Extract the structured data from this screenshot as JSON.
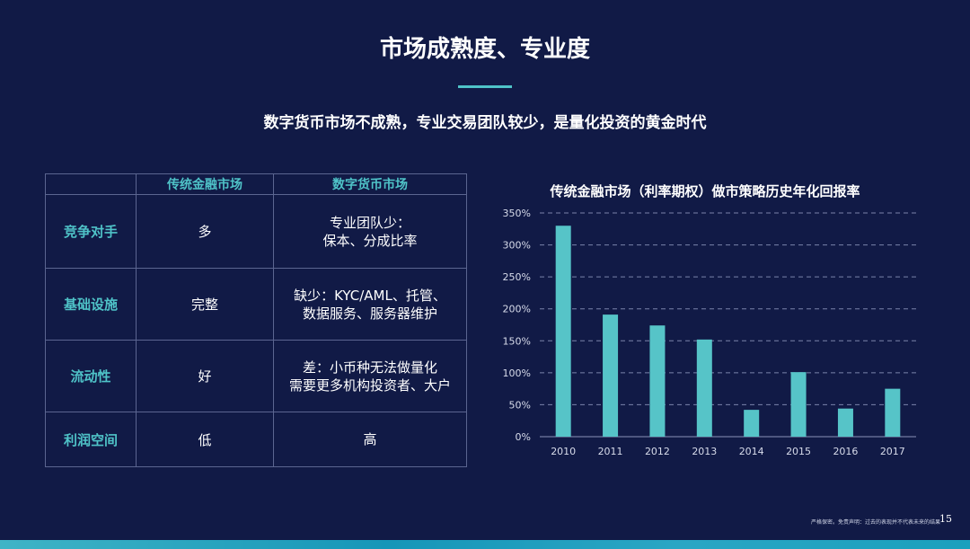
{
  "slide": {
    "title": "市场成熟度、专业度",
    "subtitle": "数字货币市场不成熟，专业交易团队较少，是量化投资的黄金时代",
    "footer_note": "严格保密。免责声明：过去的表现并不代表未来的结果",
    "page_number": "15",
    "accent_color": "#4fc3c8",
    "background_color": "#111a46"
  },
  "table": {
    "headers": [
      "",
      "传统金融市场",
      "数字货币市场"
    ],
    "rows": [
      {
        "label": "竞争对手",
        "traditional": "多",
        "crypto": [
          "专业团队少：",
          "保本、分成比率"
        ]
      },
      {
        "label": "基础设施",
        "traditional": "完整",
        "crypto": [
          "缺少：KYC/AML、托管、",
          "数据服务、服务器维护"
        ]
      },
      {
        "label": "流动性",
        "traditional": "好",
        "crypto": [
          "差：小币种无法做量化",
          "需要更多机构投资者、大户"
        ]
      },
      {
        "label": "利润空间",
        "traditional": "低",
        "crypto": [
          "高"
        ]
      }
    ]
  },
  "chart_data": {
    "type": "bar",
    "title": "传统金融市场（利率期权）做市策略历史年化回报率",
    "categories": [
      "2010",
      "2011",
      "2012",
      "2013",
      "2014",
      "2015",
      "2016",
      "2017"
    ],
    "values": [
      330,
      191,
      174,
      152,
      42,
      101,
      44,
      75
    ],
    "unit": "%",
    "ylim": [
      0,
      350
    ],
    "yticks": [
      "0%",
      "50%",
      "100%",
      "150%",
      "200%",
      "250%",
      "300%",
      "350%"
    ],
    "grid": "horizontal dashed",
    "bar_color": "#56c4c8",
    "legend": "none"
  }
}
